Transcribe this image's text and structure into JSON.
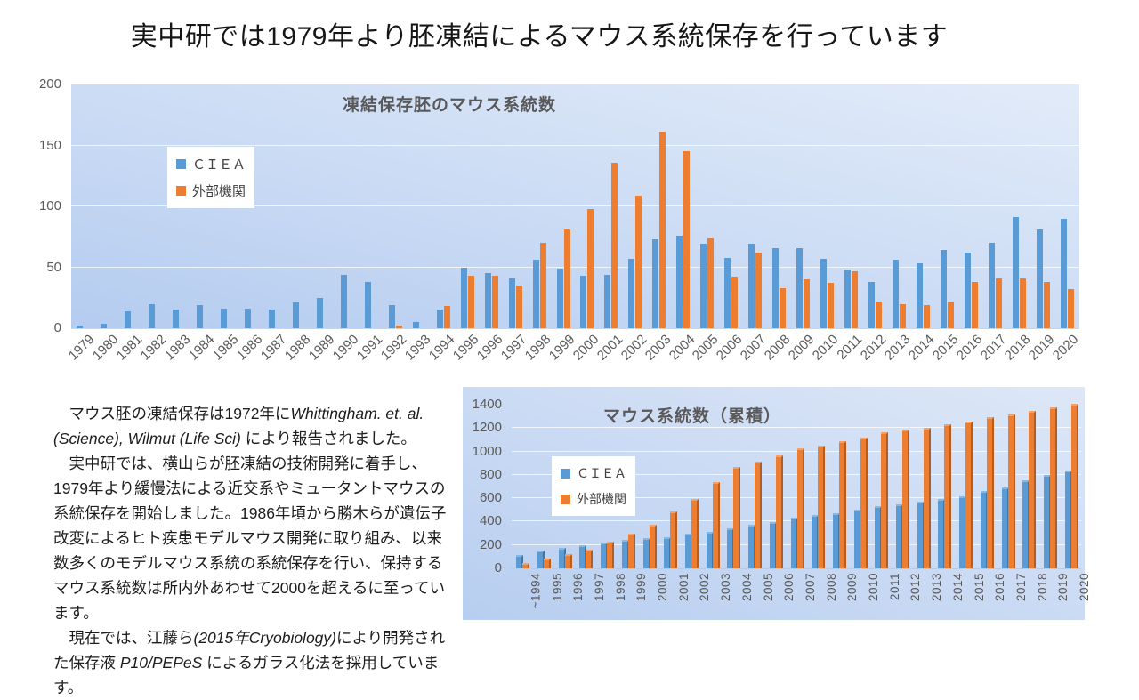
{
  "title": "実中研では1979年より胚凍結によるマウス系統保存を行っています",
  "colors": {
    "ciea_blue": "#5B9BD5",
    "external_orange": "#ED7D31",
    "axis_text": "#595959",
    "gridline": "#ffffff"
  },
  "text_panel": {
    "p1_run1": "　マウス胚の凍結保存は1972年に",
    "p1_run2_italic": "Whittingham. et. al. (Science), Wilmut (Life Sci)",
    "p1_run3": " により報告されました。",
    "p2": "　実中研では、横山らが胚凍結の技術開発に着手し、1979年より緩慢法による近交系やミュータントマウスの系統保存を開始しました。1986年頃から勝木らが遺伝子改変によるヒト疾患モデルマウス開発に取り組み、以来数多くのモデルマウス系統の系統保存を行い、保持するマウス系統数は所内外あわせて2000を超えるに至っています。",
    "p3_run1": "　現在では、江藤ら",
    "p3_run2_italic": "(2015年Cryobiology)",
    "p3_run3": "により開発された保存液 ",
    "p3_run4_italic": "P10/PEPeS",
    "p3_run5": " によるガラス化法を採用しています。"
  },
  "chart_data": [
    {
      "id": "freeze-yearly",
      "type": "bar",
      "title": "凍結保存胚のマウス系統数",
      "legend_position": "upper-left-inside",
      "grid": true,
      "ylabel": "",
      "xlabel": "",
      "ylim": [
        0,
        200
      ],
      "yticks": [
        0,
        50,
        100,
        150,
        200
      ],
      "categories": [
        "1979",
        "1980",
        "1981",
        "1982",
        "1983",
        "1984",
        "1985",
        "1986",
        "1987",
        "1988",
        "1989",
        "1990",
        "1991",
        "1992",
        "1993",
        "1994",
        "1995",
        "1996",
        "1997",
        "1998",
        "1999",
        "2000",
        "2001",
        "2002",
        "2003",
        "2004",
        "2005",
        "2006",
        "2007",
        "2008",
        "2009",
        "2010",
        "2011",
        "2012",
        "2013",
        "2014",
        "2015",
        "2016",
        "2017",
        "2018",
        "2019",
        "2020"
      ],
      "series": [
        {
          "name": "ＣＩＥＡ",
          "color": "#5B9BD5",
          "values": [
            2,
            4,
            14,
            20,
            15,
            19,
            16,
            16,
            15,
            21,
            25,
            44,
            38,
            19,
            5,
            15,
            50,
            45,
            41,
            56,
            49,
            43,
            44,
            57,
            73,
            76,
            69,
            58,
            69,
            66,
            66,
            57,
            48,
            38,
            56,
            53,
            64,
            62,
            70,
            91,
            81,
            90
          ]
        },
        {
          "name": "外部機関",
          "color": "#ED7D31",
          "values": [
            0,
            0,
            0,
            0,
            0,
            0,
            0,
            0,
            0,
            0,
            0,
            0,
            0,
            2,
            0,
            18,
            43,
            43,
            35,
            70,
            81,
            98,
            136,
            109,
            161,
            145,
            74,
            42,
            62,
            33,
            40,
            37,
            47,
            22,
            20,
            19,
            22,
            38,
            41,
            41,
            38,
            32
          ]
        }
      ]
    },
    {
      "id": "cumulative",
      "type": "bar",
      "title": "マウス系統数（累積）",
      "legend_position": "upper-left-inside",
      "grid": true,
      "ylabel": "",
      "xlabel": "",
      "ylim": [
        0,
        1400
      ],
      "yticks": [
        0,
        200,
        400,
        600,
        800,
        1000,
        1200,
        1400
      ],
      "categories": [
        "~1994",
        "1995",
        "1996",
        "1997",
        "1998",
        "1999",
        "2000",
        "2001",
        "2002",
        "2003",
        "2004",
        "2005",
        "2006",
        "2007",
        "2008",
        "2009",
        "2010",
        "2011",
        "2012",
        "2013",
        "2014",
        "2015",
        "2016",
        "2017",
        "2018",
        "2019",
        "2020"
      ],
      "series": [
        {
          "name": "ＣＩＥＡ",
          "color": "#5B9BD5",
          "values": [
            100,
            140,
            160,
            180,
            205,
            225,
            240,
            255,
            280,
            300,
            325,
            355,
            380,
            415,
            440,
            460,
            485,
            515,
            535,
            555,
            575,
            600,
            645,
            680,
            735,
            785,
            820
          ]
        },
        {
          "name": "外部機関",
          "color": "#ED7D31",
          "values": [
            30,
            70,
            105,
            145,
            210,
            280,
            360,
            475,
            580,
            720,
            850,
            900,
            950,
            1010,
            1035,
            1070,
            1105,
            1150,
            1170,
            1190,
            1220,
            1240,
            1280,
            1300,
            1335,
            1365,
            1390
          ]
        }
      ]
    }
  ]
}
